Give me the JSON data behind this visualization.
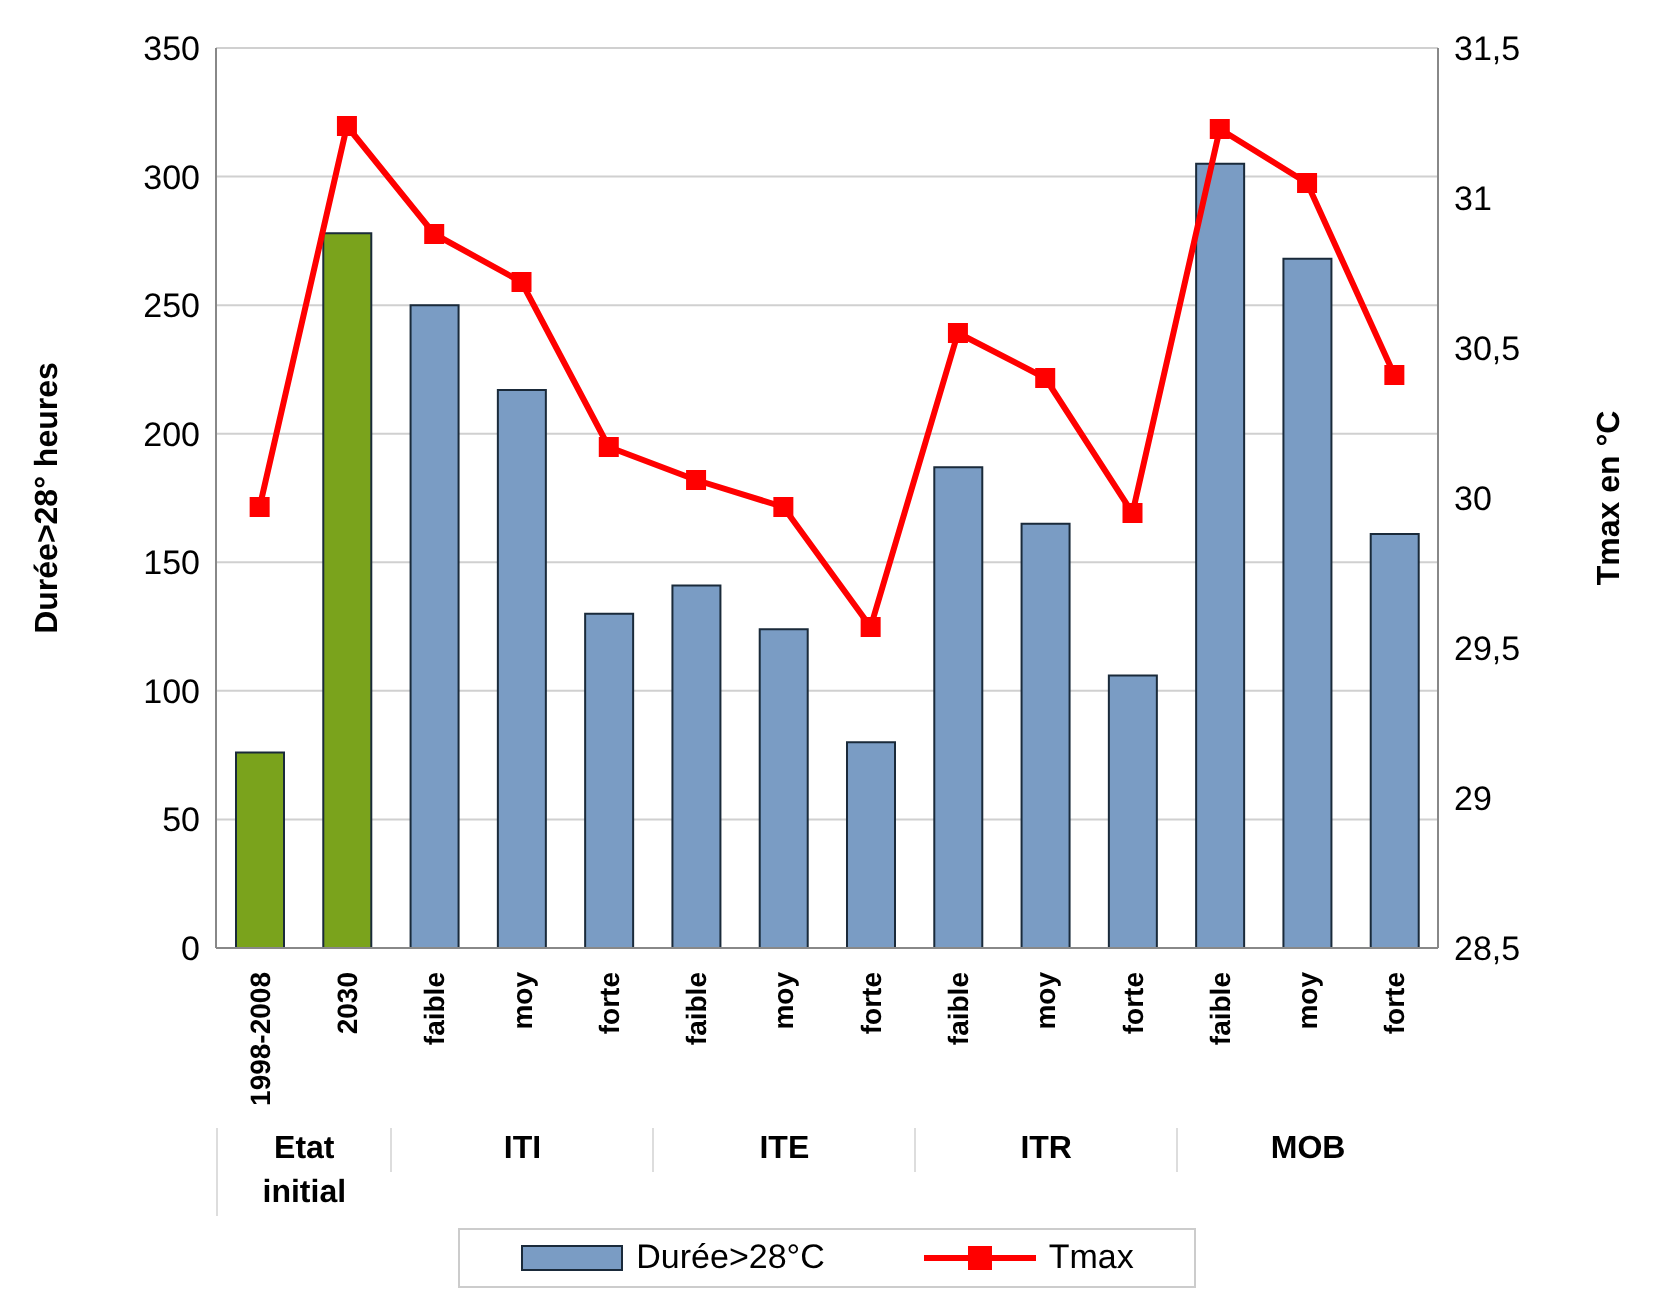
{
  "chart_data": {
    "type": "bar",
    "categories": [
      "1998-2008",
      "2030",
      "faible",
      "moy",
      "forte",
      "faible",
      "moy",
      "forte",
      "faible",
      "moy",
      "forte",
      "faible",
      "moy",
      "forte"
    ],
    "series": [
      {
        "name": "Durée>28°C",
        "color": "#7a9cc4",
        "colors": [
          "#7aa31c",
          "#7aa31c",
          "#7a9cc4",
          "#7a9cc4",
          "#7a9cc4",
          "#7a9cc4",
          "#7a9cc4",
          "#7a9cc4",
          "#7a9cc4",
          "#7a9cc4",
          "#7a9cc4",
          "#7a9cc4",
          "#7a9cc4",
          "#7a9cc4"
        ],
        "values": [
          76,
          278,
          250,
          217,
          130,
          141,
          124,
          80,
          187,
          165,
          106,
          305,
          268,
          161
        ]
      },
      {
        "name": "Tmax",
        "type": "line",
        "axis": "y2",
        "color": "#ff0000",
        "values": [
          29.97,
          31.24,
          30.88,
          30.72,
          30.17,
          30.06,
          29.97,
          29.57,
          30.55,
          30.4,
          29.95,
          31.23,
          31.05,
          30.41
        ]
      }
    ],
    "ylabel": "Durée>28° heures",
    "y2label": "Tmax en °C",
    "ylim": [
      0,
      350
    ],
    "yticks": [
      0,
      50,
      100,
      150,
      200,
      250,
      300,
      350
    ],
    "y2lim": [
      28.5,
      31.5
    ],
    "y2ticks": [
      {
        "value": 28.5,
        "label": "28,5"
      },
      29,
      {
        "value": 29.5,
        "label": "29,5"
      },
      30,
      {
        "value": 30.5,
        "label": "30,5"
      },
      31,
      {
        "value": 31.5,
        "label": "31,5"
      }
    ],
    "annotations": [
      "Etat initial",
      "ITI",
      "ITE",
      "ITR",
      "MOB"
    ],
    "grid": "y",
    "legend": "bottom",
    "marker": "square",
    "line_style": "solid"
  }
}
